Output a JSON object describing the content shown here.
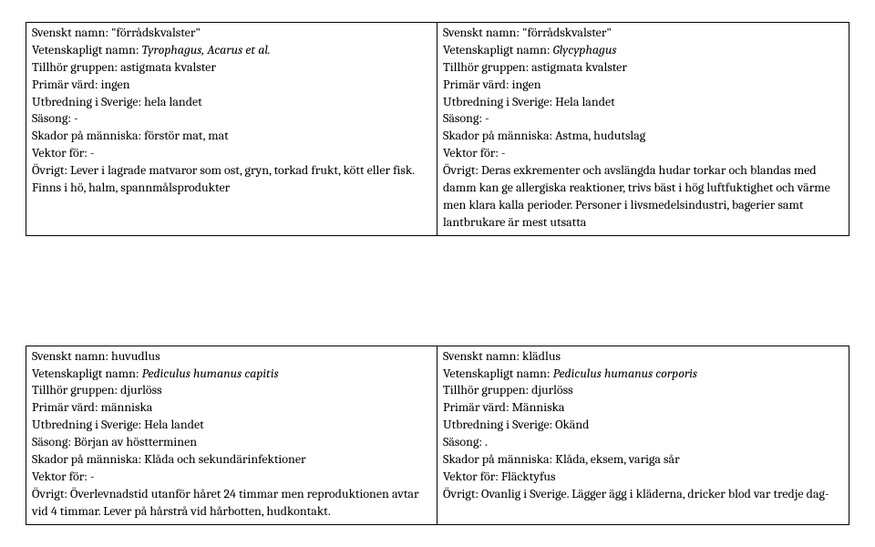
{
  "top": {
    "left": {
      "name": "Svenskt namn: \"förrådskvalster\"",
      "sci_label": "Vetenskapligt namn: ",
      "sci_value": "Tyrophagus, Acarus et al.",
      "group": "Tillhör gruppen: astigmata kvalster",
      "host": "Primär värd: ingen",
      "dist": "Utbredning i Sverige: hela landet",
      "season": "Säsong: -",
      "damage": "Skador på människa: förstör mat, mat",
      "vector": "Vektor för: -",
      "other": "Övrigt: Lever i lagrade matvaror som ost, gryn, torkad frukt, kött eller fisk. Finns i hö, halm, spannmålsprodukter"
    },
    "right": {
      "name": "Svenskt namn: \"förrådskvalster\"",
      "sci_label": "Vetenskapligt namn: ",
      "sci_value": "Glycyphagus",
      "group": "Tillhör gruppen: astigmata kvalster",
      "host": "Primär värd: ingen",
      "dist": "Utbredning i Sverige: Hela landet",
      "season": "Säsong: -",
      "damage": "Skador på människa: Astma, hudutslag",
      "vector": "Vektor för: -",
      "other": "Övrigt: Deras exkrementer och avslängda hudar torkar och blandas med damm kan ge allergiska reaktioner, trivs bäst i hög luftfuktighet och värme men klara kalla perioder. Personer i livsmedelsindustri, bagerier samt lantbrukare är mest utsatta"
    }
  },
  "bottom": {
    "left": {
      "name": "Svenskt namn: huvudlus",
      "sci_label": "Vetenskapligt namn: ",
      "sci_value": "Pediculus humanus capitis",
      "group": "Tillhör gruppen: djurlöss",
      "host": "Primär värd: människa",
      "dist": "Utbredning i Sverige: Hela landet",
      "season": "Säsong: Början av höstterminen",
      "damage": "Skador på människa: Klåda och sekundärinfektioner",
      "vector": "Vektor för: -",
      "other": "Övrigt: Överlevnadstid utanför håret 24 timmar men reproduktionen avtar vid 4 timmar. Lever på hårstrå vid hårbotten, hudkontakt."
    },
    "right": {
      "name": "Svenskt namn: klädlus",
      "sci_label": "Vetenskapligt namn: ",
      "sci_value": "Pediculus humanus corporis",
      "group": "Tillhör gruppen: djurlöss",
      "host": "Primär värd: Människa",
      "dist": "Utbredning i Sverige: Okänd",
      "season": "Säsong: .",
      "damage": "Skador på människa: Klåda, eksem, variga sår",
      "vector": "Vektor för: Fläcktyfus",
      "other": "Övrigt: Ovanlig i Sverige. Lägger ägg i kläderna, dricker blod var tredje dag-"
    }
  }
}
